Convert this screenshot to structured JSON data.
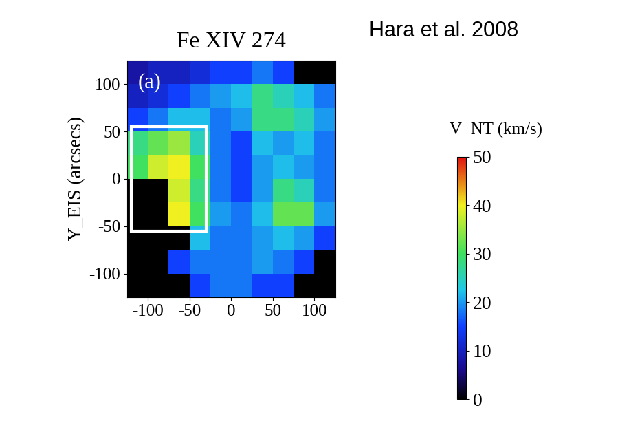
{
  "chart_data": {
    "type": "heatmap",
    "title": "Fe XIV 274",
    "annotations": [
      "Hara et al. 2008",
      "(a)"
    ],
    "ylabel": "Y_EIS (arcsecs)",
    "colorbar_label": "V_NT (km/s)",
    "x_edges": [
      -125,
      -100,
      -75,
      -50,
      -25,
      0,
      25,
      50,
      75,
      100,
      125
    ],
    "y_edges": [
      -125,
      -100,
      -75,
      -50,
      -25,
      0,
      25,
      50,
      75,
      100,
      125
    ],
    "cells": [
      [
        0,
        0,
        0,
        15,
        18,
        18,
        15,
        15,
        0,
        0
      ],
      [
        0,
        0,
        15,
        18,
        18,
        18,
        20,
        18,
        15,
        0
      ],
      [
        0,
        0,
        0,
        22,
        18,
        18,
        20,
        22,
        20,
        15
      ],
      [
        0,
        0,
        40,
        30,
        20,
        18,
        22,
        32,
        32,
        20
      ],
      [
        0,
        0,
        38,
        28,
        18,
        15,
        20,
        28,
        25,
        18
      ],
      [
        30,
        38,
        40,
        30,
        18,
        15,
        20,
        22,
        20,
        18
      ],
      [
        28,
        32,
        35,
        25,
        18,
        15,
        22,
        20,
        22,
        18
      ],
      [
        15,
        18,
        22,
        22,
        18,
        20,
        28,
        28,
        25,
        20
      ],
      [
        10,
        12,
        15,
        18,
        20,
        22,
        28,
        25,
        22,
        18
      ],
      [
        8,
        10,
        10,
        12,
        15,
        15,
        18,
        15,
        0,
        0
      ]
    ],
    "box": {
      "x": [
        -120,
        -30
      ],
      "y": [
        -55,
        55
      ]
    },
    "xlim": [
      -125,
      125
    ],
    "ylim": [
      -125,
      125
    ],
    "xticks": [
      -100,
      -50,
      0,
      50,
      100
    ],
    "yticks": [
      -100,
      -50,
      0,
      50,
      100
    ],
    "colorbar_range": [
      0,
      50
    ],
    "colorbar_ticks": [
      0,
      10,
      20,
      30,
      40,
      50
    ]
  }
}
